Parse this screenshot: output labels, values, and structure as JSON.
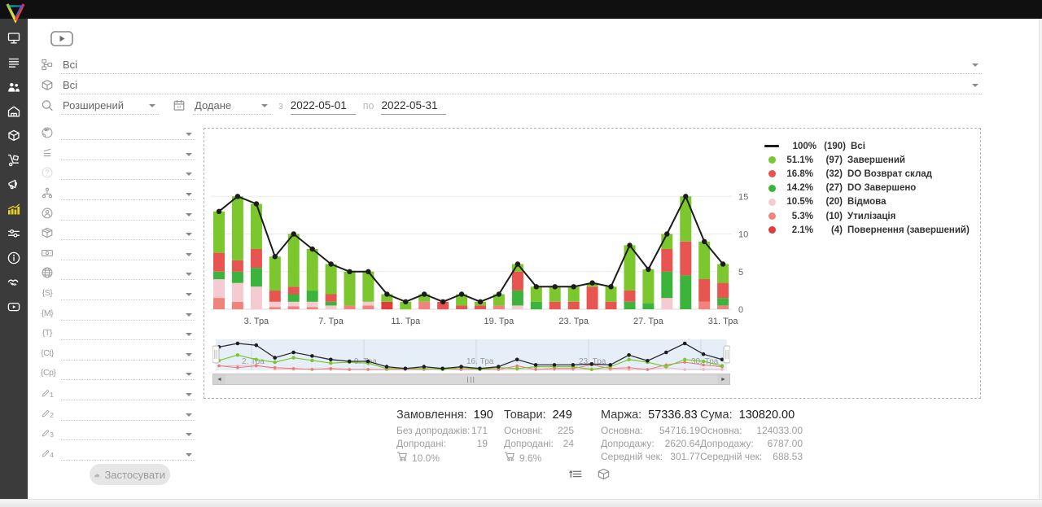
{
  "topbar": {
    "icons": [
      {
        "name": "account"
      },
      {
        "name": "notifications"
      },
      {
        "name": "support"
      }
    ]
  },
  "sidebar": {
    "items": [
      {
        "name": "dashboard",
        "icon": "desktop",
        "active": false
      },
      {
        "name": "orders",
        "icon": "orders",
        "active": false
      },
      {
        "name": "customers",
        "icon": "customers",
        "active": false
      },
      {
        "name": "warehouse",
        "icon": "warehouse",
        "active": false
      },
      {
        "name": "products",
        "icon": "products",
        "active": false
      },
      {
        "name": "procurement",
        "icon": "trolley",
        "active": false
      },
      {
        "name": "marketing",
        "icon": "megaphone",
        "active": false
      },
      {
        "name": "statistics",
        "icon": "stats",
        "active": true
      },
      {
        "name": "settings",
        "icon": "sliders",
        "active": false
      },
      {
        "name": "info",
        "icon": "info",
        "active": false
      },
      {
        "name": "partners",
        "icon": "handshake",
        "active": false
      },
      {
        "name": "video-tutorials",
        "icon": "video",
        "active": false
      }
    ]
  },
  "filters": {
    "status_select": {
      "value": "Всі"
    },
    "product_select": {
      "value": "Всі"
    },
    "search_mode": {
      "value": "Розширений"
    },
    "date_field": {
      "value": "Додане"
    },
    "date_from_label": "з",
    "date_from": "2022-05-01",
    "date_to_label": "по",
    "date_to": "2022-05-31",
    "side_rows": [
      {
        "icon": "globe"
      },
      {
        "icon": "report"
      },
      {
        "icon": "help",
        "faded": true
      },
      {
        "icon": "sitemap"
      },
      {
        "icon": "person"
      },
      {
        "icon": "package"
      },
      {
        "icon": "banknote"
      },
      {
        "icon": "web"
      },
      {
        "icon": "tag",
        "glyph": "{S}"
      },
      {
        "icon": "tag",
        "glyph": "{M}"
      },
      {
        "icon": "tag",
        "glyph": "{T}"
      },
      {
        "icon": "tag",
        "glyph": "{Ct}"
      },
      {
        "icon": "tag",
        "glyph": "{Cp}"
      },
      {
        "icon": "pencil",
        "num": "1"
      },
      {
        "icon": "pencil",
        "num": "2"
      },
      {
        "icon": "pencil",
        "num": "3"
      },
      {
        "icon": "pencil",
        "num": "4"
      }
    ],
    "apply_label": "Застосувати"
  },
  "chart_data": {
    "type": "bar",
    "stacked": true,
    "line_overlay": "Всі",
    "x_unit": "день травня 2022 (Тра)",
    "ylim": [
      0,
      16.5
    ],
    "yticks": [
      0,
      5,
      10,
      15
    ],
    "yaxis_side": "right",
    "categories": [
      "1",
      "2",
      "3",
      "4",
      "5",
      "6",
      "7",
      "8",
      "9",
      "10",
      "11",
      "12",
      "14",
      "16",
      "18",
      "19",
      "20",
      "21",
      "22",
      "23",
      "24",
      "25",
      "26",
      "27",
      "28",
      "29",
      "30",
      "31"
    ],
    "x_tick_labels": [
      {
        "index": 2,
        "label": "3. Тра"
      },
      {
        "index": 6,
        "label": "7. Тра"
      },
      {
        "index": 10,
        "label": "11. Тра"
      },
      {
        "index": 15,
        "label": "19. Тра"
      },
      {
        "index": 19,
        "label": "23. Тра"
      },
      {
        "index": 23,
        "label": "27. Тра"
      },
      {
        "index": 27,
        "label": "31. Тра"
      }
    ],
    "series": [
      {
        "name": "Повернення (завершений)",
        "color": "#e23b3b",
        "values": [
          0,
          0,
          0,
          0,
          0,
          0,
          0,
          0,
          0,
          1,
          0,
          0,
          0,
          0,
          0,
          0,
          0,
          0,
          0,
          0,
          0,
          0,
          0,
          0,
          0,
          0,
          0,
          0
        ]
      },
      {
        "name": "Утилізація",
        "color": "#f2827d",
        "values": [
          1.5,
          1,
          0,
          0.3,
          0.4,
          0.3,
          0,
          0.5,
          0.5,
          0,
          0,
          1,
          0,
          0,
          0,
          0.5,
          0,
          0,
          0,
          0,
          0,
          0,
          0,
          0,
          0,
          0,
          1,
          0.5
        ]
      },
      {
        "name": "Відмова",
        "color": "#f5cbd2",
        "values": [
          2.5,
          2.5,
          3,
          0.7,
          0.6,
          0.7,
          0.5,
          0,
          0.5,
          0,
          0,
          0,
          0,
          0,
          0,
          0,
          0.5,
          0,
          0,
          0,
          0,
          0,
          0,
          0,
          1.5,
          0,
          0,
          0
        ]
      },
      {
        "name": "DO Завершено",
        "color": "#3cb43c",
        "values": [
          1,
          1.5,
          2.5,
          0,
          1,
          1.5,
          0.5,
          0,
          0,
          0,
          0,
          0,
          0,
          0,
          0,
          0,
          2,
          1,
          0,
          0,
          0,
          0,
          1,
          0.8,
          3.5,
          4.5,
          0,
          1
        ]
      },
      {
        "name": "DO Возврат склад",
        "color": "#e8544f",
        "values": [
          2.5,
          1.5,
          2.5,
          1.5,
          1,
          0,
          1,
          0,
          0,
          0,
          0,
          0,
          1,
          0.5,
          0.5,
          0,
          2.5,
          0,
          1,
          1,
          3,
          1,
          1.5,
          0,
          3,
          4.5,
          3,
          2
        ]
      },
      {
        "name": "Завершений",
        "color": "#7cc62e",
        "values": [
          5.5,
          8.5,
          6,
          4.5,
          7,
          5.5,
          4,
          4.5,
          4,
          1,
          1,
          1,
          0,
          1.5,
          0.5,
          1.5,
          1,
          2,
          2,
          2,
          0.5,
          2,
          6,
          4.5,
          2,
          6,
          5,
          2.5
        ]
      }
    ],
    "total_line": {
      "name": "Всі",
      "color": "#1c1c1c",
      "values": [
        13,
        15,
        14,
        7,
        10,
        8,
        6,
        5,
        5,
        2,
        1,
        2,
        1,
        2,
        1,
        2,
        6,
        3,
        3,
        3,
        3.5,
        3,
        8.5,
        5.3,
        10,
        15,
        9,
        6
      ]
    },
    "legend": [
      {
        "marker": "line",
        "color": "#1c1c1c",
        "percent": "100%",
        "count": "(190)",
        "label": "Всі"
      },
      {
        "marker": "dot",
        "color": "#7cc62e",
        "percent": "51.1%",
        "count": "(97)",
        "label": "Завершений"
      },
      {
        "marker": "dot",
        "color": "#e8544f",
        "percent": "16.8%",
        "count": "(32)",
        "label": "DO Возврат склад"
      },
      {
        "marker": "dot",
        "color": "#3cb43c",
        "percent": "14.2%",
        "count": "(27)",
        "label": "DO Завершено"
      },
      {
        "marker": "dot",
        "color": "#f5cbd2",
        "percent": "10.5%",
        "count": "(20)",
        "label": "Відмова"
      },
      {
        "marker": "dot",
        "color": "#f2827d",
        "percent": "5.3%",
        "count": "(10)",
        "label": "Утилізація"
      },
      {
        "marker": "dot",
        "color": "#e23b3b",
        "percent": "2.1%",
        "count": "(4)",
        "label": "Повернення (завершений)"
      }
    ],
    "navigator": {
      "labels": [
        "2. Тра",
        "9. Тра",
        "16. Тра",
        "23. Тра",
        "30. Тра"
      ],
      "scrollbar": {
        "left_arrow": "◄",
        "right_arrow": "►",
        "grip": "|||"
      }
    }
  },
  "stats": {
    "groups": [
      {
        "name": "orders",
        "title": "Замовлення:",
        "value": "190",
        "rows": [
          {
            "label": "Без допродажів:",
            "value": "171"
          },
          {
            "label": "Допродані:",
            "value": "19"
          }
        ],
        "cart_percent": "10.0%"
      },
      {
        "name": "products",
        "title": "Товари:",
        "value": "249",
        "rows": [
          {
            "label": "Основні:",
            "value": "225"
          },
          {
            "label": "Допродані:",
            "value": "24"
          }
        ],
        "cart_percent": "9.6%"
      },
      {
        "name": "margin",
        "title": "Маржа:",
        "value": "57336.83",
        "rows": [
          {
            "label": "Основна:",
            "value": "54716.19"
          },
          {
            "label": "Допродажу:",
            "value": "2620.64"
          },
          {
            "label": "Середній чек:",
            "value": "301.77"
          }
        ]
      },
      {
        "name": "total",
        "title": "Сума:",
        "value": "130820.00",
        "rows": [
          {
            "label": "Основна:",
            "value": "124033.00"
          },
          {
            "label": "Допродажу:",
            "value": "6787.00"
          },
          {
            "label": "Середній чек:",
            "value": "688.53"
          }
        ]
      }
    ]
  },
  "view_toggles": [
    {
      "name": "orders-list-view"
    },
    {
      "name": "products-view"
    }
  ]
}
